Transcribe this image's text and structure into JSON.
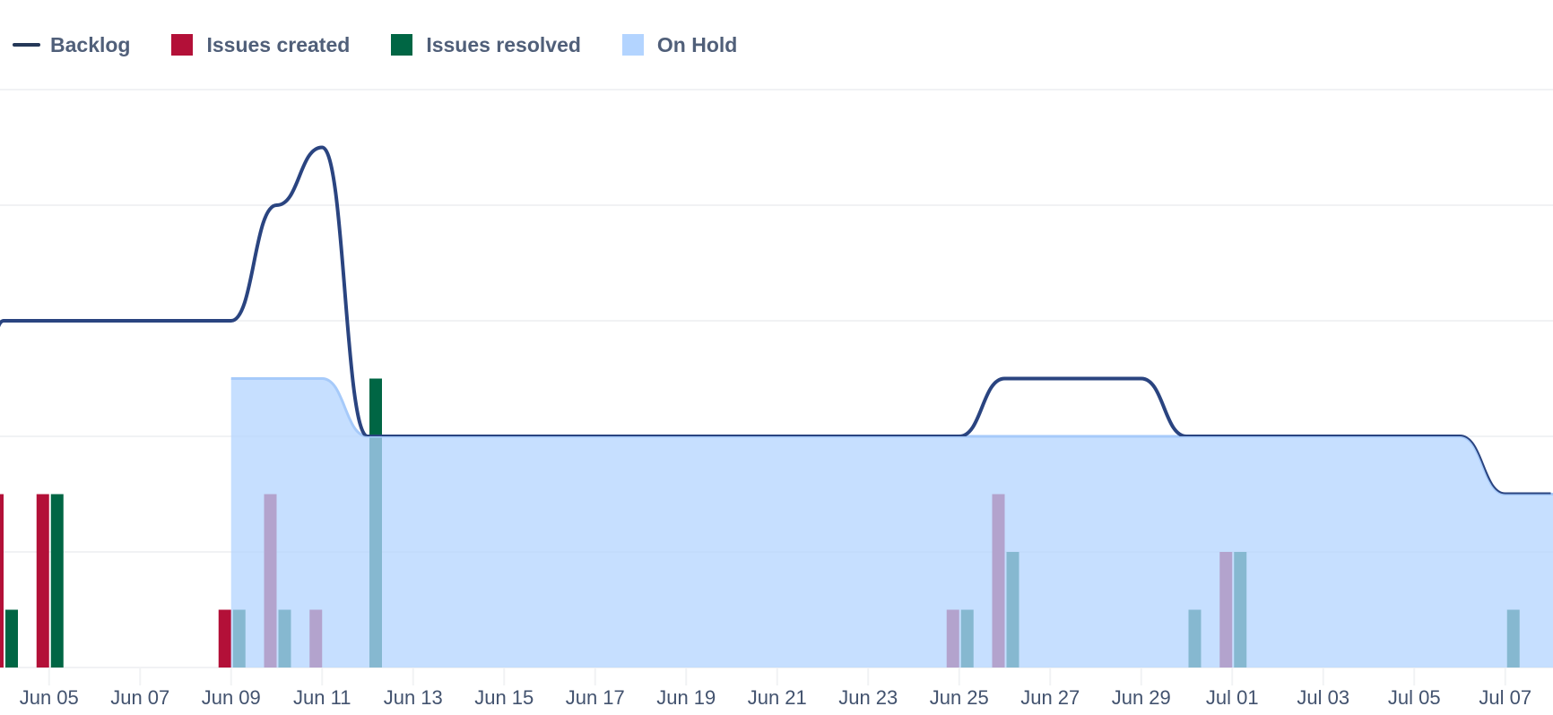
{
  "legend": [
    {
      "key": "backlog",
      "label": "Backlog",
      "type": "line",
      "color": "#253858"
    },
    {
      "key": "created",
      "label": "Issues created",
      "type": "box",
      "color": "#B31038"
    },
    {
      "key": "resolved",
      "label": "Issues resolved",
      "type": "box",
      "color": "#006644"
    },
    {
      "key": "on_hold",
      "label": "On Hold",
      "type": "box",
      "color": "#B3D4FF"
    }
  ],
  "colors": {
    "backlog": "#2A4480",
    "created": "#B31038",
    "resolved": "#006644",
    "on_hold_fill": "#B3D4FF",
    "on_hold_stroke": "#A6CAFA",
    "grid": "#F1F2F4",
    "axis_text": "#42526E"
  },
  "chart_data": {
    "type": "bar",
    "title": "",
    "xlabel": "",
    "ylabel": "",
    "ylim": [
      0,
      10
    ],
    "grid": true,
    "y_gridlines": [
      0,
      2,
      4,
      6,
      8,
      10
    ],
    "legend_position": "top-left",
    "x": [
      "Jun 04",
      "Jun 05",
      "Jun 06",
      "Jun 07",
      "Jun 08",
      "Jun 09",
      "Jun 10",
      "Jun 11",
      "Jun 12",
      "Jun 13",
      "Jun 14",
      "Jun 15",
      "Jun 16",
      "Jun 17",
      "Jun 18",
      "Jun 19",
      "Jun 20",
      "Jun 21",
      "Jun 22",
      "Jun 23",
      "Jun 24",
      "Jun 25",
      "Jun 26",
      "Jun 27",
      "Jun 28",
      "Jun 29",
      "Jun 30",
      "Jul 01",
      "Jul 02",
      "Jul 03",
      "Jul 04",
      "Jul 05",
      "Jul 06",
      "Jul 07",
      "Jul 08"
    ],
    "tick_labels": [
      "Jun 05",
      "Jun 07",
      "Jun 09",
      "Jun 11",
      "Jun 13",
      "Jun 15",
      "Jun 17",
      "Jun 19",
      "Jun 21",
      "Jun 23",
      "Jun 25",
      "Jun 27",
      "Jun 29",
      "Jul 01",
      "Jul 03",
      "Jul 05",
      "Jul 07"
    ],
    "series": [
      {
        "name": "Backlog",
        "type": "line",
        "values": [
          6,
          6,
          6,
          6,
          6,
          6,
          8,
          9,
          4,
          4,
          4,
          4,
          4,
          4,
          4,
          4,
          4,
          4,
          4,
          4,
          4,
          4,
          5,
          5,
          5,
          5,
          4,
          4,
          4,
          4,
          4,
          4,
          4,
          3,
          3
        ]
      },
      {
        "name": "Issues created",
        "type": "bar",
        "values": [
          3,
          3,
          0,
          0,
          0,
          1,
          3,
          1,
          0,
          0,
          0,
          0,
          0,
          0,
          0,
          0,
          0,
          0,
          0,
          0,
          0,
          1,
          3,
          0,
          0,
          0,
          0,
          2,
          0,
          0,
          0,
          0,
          0,
          0,
          0
        ]
      },
      {
        "name": "Issues resolved",
        "type": "bar",
        "values": [
          1,
          3,
          0,
          0,
          0,
          1,
          1,
          0,
          5,
          0,
          0,
          0,
          0,
          0,
          0,
          0,
          0,
          0,
          0,
          0,
          0,
          1,
          2,
          0,
          0,
          0,
          1,
          2,
          0,
          0,
          0,
          0,
          0,
          1,
          0
        ]
      },
      {
        "name": "On Hold",
        "type": "area",
        "values": [
          null,
          null,
          null,
          null,
          null,
          5,
          5,
          5,
          4,
          4,
          4,
          4,
          4,
          4,
          4,
          4,
          4,
          4,
          4,
          4,
          4,
          4,
          4,
          4,
          4,
          4,
          4,
          4,
          4,
          4,
          4,
          4,
          4,
          3,
          3
        ]
      }
    ]
  }
}
